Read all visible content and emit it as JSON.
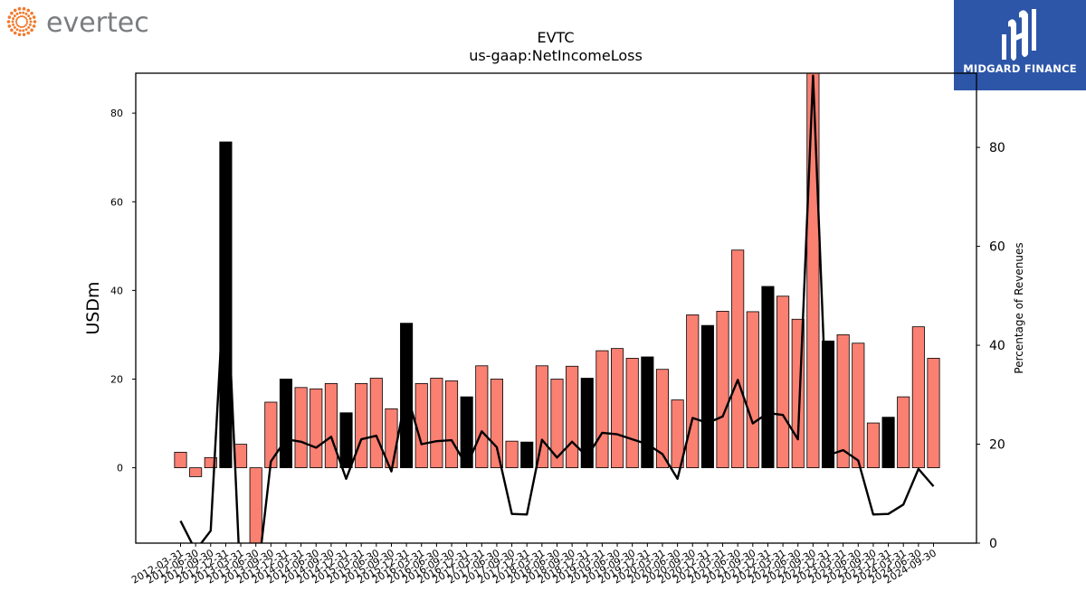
{
  "branding": {
    "left_logo_text": "evertec",
    "right_logo_text": "MIDGARD FINANCE",
    "colors": {
      "evertec_orange": "#f07a2c",
      "evertec_gray": "#7b7d80",
      "midgard_blue": "#2d56a8"
    }
  },
  "chart_data": {
    "type": "bar",
    "title": "EVTC",
    "subtitle": "us-gaap:NetIncomeLoss",
    "ylabel": "USDm",
    "y2label": "Percentage of Revenues",
    "ylim": [
      -17,
      89
    ],
    "y2lim": [
      0,
      95
    ],
    "yticks": [
      0,
      20,
      40,
      60,
      80
    ],
    "y2ticks": [
      0,
      20,
      40,
      60,
      80
    ],
    "colors": {
      "quarter_bar": "#fa8072",
      "year_end_bar": "#000000",
      "line": "#000000"
    },
    "categories": [
      "2012-03-31",
      "2012-06-30",
      "2012-09-30",
      "2012-12-31",
      "2013-03-31",
      "2013-06-30",
      "2013-09-30",
      "2013-12-31",
      "2014-03-31",
      "2014-06-30",
      "2014-09-30",
      "2014-12-31",
      "2015-03-31",
      "2015-06-30",
      "2015-09-30",
      "2015-12-31",
      "2016-03-31",
      "2016-06-30",
      "2016-09-30",
      "2016-12-31",
      "2017-03-31",
      "2017-06-30",
      "2017-09-30",
      "2017-12-31",
      "2018-03-31",
      "2018-06-30",
      "2018-09-30",
      "2018-12-31",
      "2019-03-31",
      "2019-06-30",
      "2019-09-30",
      "2019-12-31",
      "2020-03-31",
      "2020-06-30",
      "2020-09-30",
      "2020-12-31",
      "2021-03-31",
      "2021-06-30",
      "2021-09-30",
      "2021-12-31",
      "2022-03-31",
      "2022-06-30",
      "2022-09-30",
      "2022-12-31",
      "2023-03-31",
      "2023-06-30",
      "2023-09-30",
      "2023-12-31",
      "2024-03-31",
      "2024-06-30",
      "2024-09-30"
    ],
    "series": [
      {
        "kind": "bar",
        "values": [
          3.5,
          -2.0,
          2.3,
          73.5,
          5.3,
          -27,
          14.8,
          20.0,
          18.1,
          17.8,
          19.0,
          12.4,
          19.0,
          20.2,
          13.3,
          32.6,
          19.0,
          20.2,
          19.6,
          16.0,
          23.0,
          20.0,
          6.0,
          5.8,
          23.0,
          20.0,
          22.9,
          20.2,
          26.4,
          26.9,
          24.7,
          25.0,
          22.2,
          15.3,
          34.5,
          32.1,
          35.3,
          49.1,
          35.2,
          40.9,
          38.7,
          33.5,
          89,
          28.6,
          30.0,
          28.1,
          10.1,
          11.4,
          16.0,
          31.8,
          24.7
        ],
        "year_end": [
          false,
          false,
          false,
          true,
          false,
          false,
          false,
          true,
          false,
          false,
          false,
          true,
          false,
          false,
          false,
          true,
          false,
          false,
          false,
          true,
          false,
          false,
          false,
          true,
          false,
          false,
          false,
          true,
          false,
          false,
          false,
          true,
          false,
          false,
          false,
          true,
          false,
          false,
          false,
          true,
          false,
          false,
          false,
          true,
          false,
          false,
          false,
          true,
          false,
          false,
          false
        ]
      },
      {
        "kind": "line",
        "axis": "right",
        "values": [
          4.5,
          -1.5,
          2.5,
          58.0,
          -10,
          -10,
          16.5,
          21.0,
          20.5,
          19.3,
          21.5,
          13.0,
          21.0,
          21.7,
          14.5,
          30.5,
          20.0,
          20.6,
          20.8,
          15.6,
          22.6,
          19.4,
          5.9,
          5.8,
          20.9,
          17.3,
          20.5,
          17.5,
          22.3,
          22.0,
          21.0,
          20.0,
          18.0,
          13.0,
          25.3,
          24.3,
          25.6,
          33.0,
          24.2,
          26.3,
          25.9,
          21.0,
          94.5,
          17.8,
          18.8,
          16.7,
          5.8,
          5.9,
          7.8,
          15.0,
          11.5
        ]
      }
    ]
  }
}
